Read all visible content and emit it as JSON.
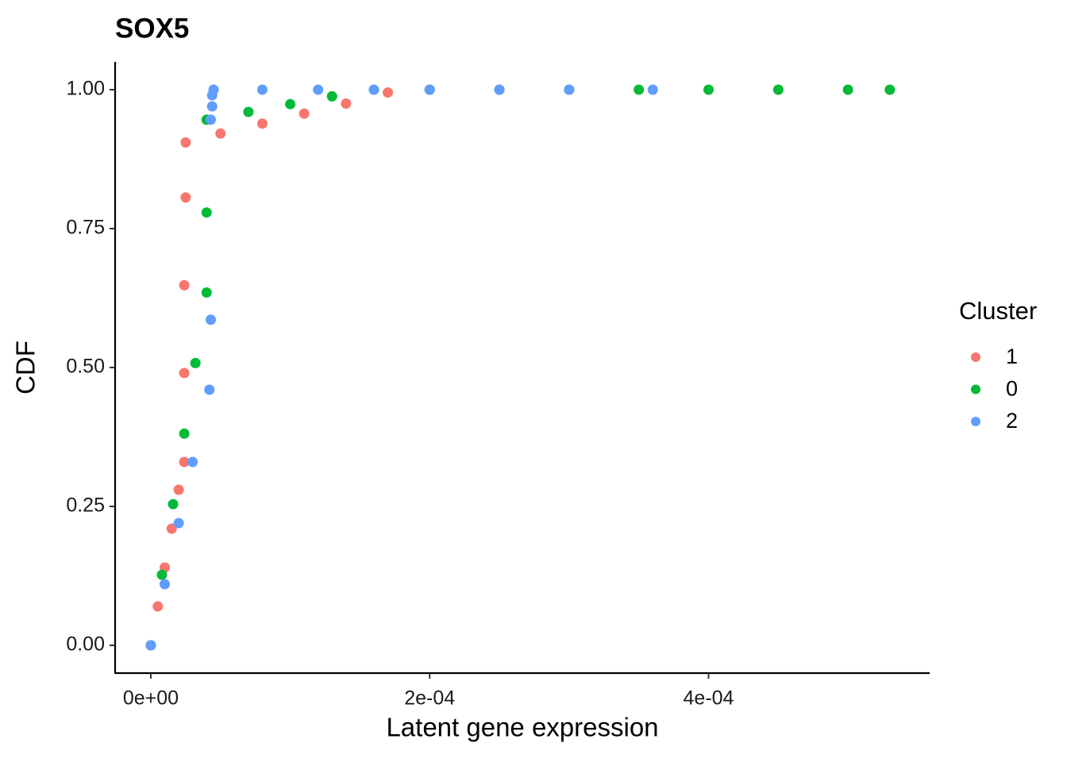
{
  "chart_data": {
    "type": "scatter",
    "title": "SOX5",
    "xlabel": "Latent gene expression",
    "ylabel": "CDF",
    "legend_title": "Cluster",
    "legend": "right",
    "xlim": [
      -2.56e-05,
      0.000558
    ],
    "ylim": [
      -0.05,
      1.05
    ],
    "xticks": [
      {
        "value": 0,
        "label": "0e+00"
      },
      {
        "value": 0.0002,
        "label": "2e-04"
      },
      {
        "value": 0.0004,
        "label": "4e-04"
      }
    ],
    "yticks": [
      {
        "value": 0,
        "label": "0.00"
      },
      {
        "value": 0.25,
        "label": "0.25"
      },
      {
        "value": 0.5,
        "label": "0.50"
      },
      {
        "value": 0.75,
        "label": "0.75"
      },
      {
        "value": 1,
        "label": "1.00"
      }
    ],
    "series": [
      {
        "name": "1",
        "color": "#F8766D",
        "x": [
          0,
          5e-06,
          1e-05,
          1.5e-05,
          2e-05,
          2.4e-05,
          2.4e-05,
          2.4e-05,
          2.5e-05,
          2.5e-05,
          5e-05,
          8e-05,
          0.00011,
          0.00014,
          0.00017,
          0.0002
        ],
        "values": [
          0,
          0.07,
          0.14,
          0.21,
          0.28,
          0.33,
          0.49,
          0.648,
          0.806,
          0.905,
          0.921,
          0.939,
          0.957,
          0.975,
          0.995,
          1
        ]
      },
      {
        "name": "0",
        "color": "#00BA38",
        "x": [
          0,
          8e-06,
          1.6e-05,
          2.4e-05,
          3.2e-05,
          4e-05,
          4e-05,
          4e-05,
          7e-05,
          0.0001,
          0.00013,
          0.00016,
          0.0002,
          0.00025,
          0.0003,
          0.00035,
          0.0004,
          0.00045,
          0.0005,
          0.00053
        ],
        "values": [
          0,
          0.127,
          0.254,
          0.381,
          0.508,
          0.635,
          0.779,
          0.946,
          0.96,
          0.974,
          0.988,
          1,
          1,
          1,
          1,
          1,
          1,
          1,
          1,
          1
        ]
      },
      {
        "name": "2",
        "color": "#619CFF",
        "x": [
          0,
          1e-05,
          2e-05,
          3e-05,
          4.2e-05,
          4.3e-05,
          4.3e-05,
          4.4e-05,
          4.4e-05,
          4.5e-05,
          8e-05,
          0.00012,
          0.00016,
          0.0002,
          0.00025,
          0.0003,
          0.00036
        ],
        "values": [
          0,
          0.11,
          0.22,
          0.33,
          0.46,
          0.586,
          0.946,
          0.97,
          0.99,
          1,
          1,
          1,
          1,
          1,
          1,
          1,
          1
        ]
      }
    ]
  }
}
